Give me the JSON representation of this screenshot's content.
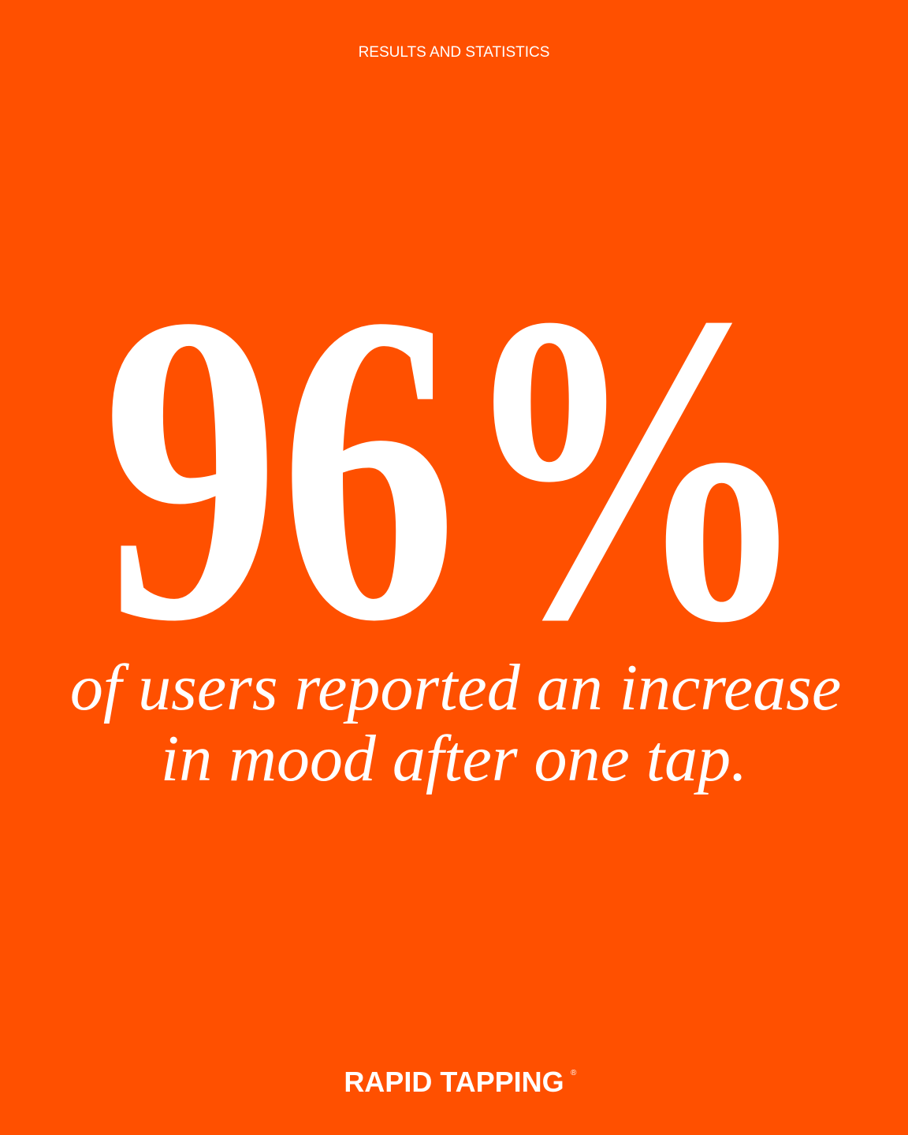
{
  "header": {
    "title": "RESULTS AND STATISTICS"
  },
  "stat": {
    "value": "96%",
    "description": [
      "of users reported an increase",
      "in mood after one tap."
    ]
  },
  "footer": {
    "brand": "RAPID TAPPING",
    "mark": "®"
  }
}
